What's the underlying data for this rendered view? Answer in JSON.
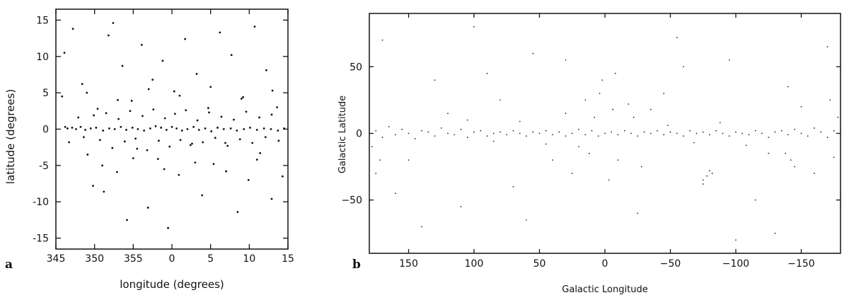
{
  "chart_data": [
    {
      "id": "a",
      "type": "scatter",
      "panel_label": "a",
      "xlabel": "longitude (degrees)",
      "ylabel": "latitude (degrees)",
      "xlim": [
        345,
        15
      ],
      "ylim": [
        -16.5,
        16.5
      ],
      "x_ticks": [
        345,
        350,
        355,
        0,
        5,
        10,
        15
      ],
      "x_tick_labels": [
        "345",
        "350",
        "355",
        "0",
        "5",
        "10",
        "15"
      ],
      "y_ticks": [
        -15,
        -10,
        -5,
        0,
        5,
        10,
        15
      ],
      "y_tick_labels": [
        "-15",
        "-10",
        "-5",
        "0",
        "5",
        "10",
        "15"
      ],
      "grid": false,
      "points": [
        [
          -13.8,
          0.3
        ],
        [
          -13.5,
          0.1
        ],
        [
          -12.9,
          0.2
        ],
        [
          -12.4,
          0.0
        ],
        [
          -11.8,
          0.3
        ],
        [
          -11.2,
          -0.1
        ],
        [
          -10.5,
          0.1
        ],
        [
          -9.8,
          0.2
        ],
        [
          -8.9,
          -0.2
        ],
        [
          -8.1,
          0.1
        ],
        [
          -7.4,
          0.0
        ],
        [
          -6.6,
          0.3
        ],
        [
          -5.9,
          -0.1
        ],
        [
          -5.1,
          0.2
        ],
        [
          -4.4,
          0.0
        ],
        [
          -3.6,
          -0.2
        ],
        [
          -2.8,
          0.1
        ],
        [
          -2.1,
          0.4
        ],
        [
          -1.4,
          0.2
        ],
        [
          -0.7,
          -0.1
        ],
        [
          0.0,
          0.3
        ],
        [
          0.6,
          0.1
        ],
        [
          1.3,
          -0.2
        ],
        [
          2.0,
          0.0
        ],
        [
          2.8,
          0.3
        ],
        [
          3.5,
          -0.1
        ],
        [
          4.3,
          0.1
        ],
        [
          5.1,
          -0.3
        ],
        [
          5.9,
          0.2
        ],
        [
          6.7,
          0.0
        ],
        [
          7.6,
          0.1
        ],
        [
          8.4,
          -0.2
        ],
        [
          9.3,
          0.0
        ],
        [
          10.1,
          0.2
        ],
        [
          11.0,
          -0.1
        ],
        [
          11.9,
          0.1
        ],
        [
          12.8,
          0.0
        ],
        [
          13.7,
          -0.2
        ],
        [
          14.5,
          0.1
        ],
        [
          -14.2,
          4.5
        ],
        [
          -13.9,
          10.5
        ],
        [
          -12.8,
          13.8
        ],
        [
          -11.6,
          6.2
        ],
        [
          -10.9,
          -3.5
        ],
        [
          -10.2,
          -7.8
        ],
        [
          -9.6,
          2.8
        ],
        [
          -8.8,
          -8.6
        ],
        [
          -8.2,
          12.9
        ],
        [
          -7.6,
          14.6
        ],
        [
          -7.1,
          -5.9
        ],
        [
          -6.4,
          8.7
        ],
        [
          -5.8,
          -12.5
        ],
        [
          -5.2,
          3.9
        ],
        [
          -4.5,
          -2.7
        ],
        [
          -3.9,
          11.6
        ],
        [
          -3.1,
          -10.8
        ],
        [
          -2.5,
          6.8
        ],
        [
          -1.8,
          -4.1
        ],
        [
          -1.2,
          9.4
        ],
        [
          -0.5,
          -13.6
        ],
        [
          0.3,
          5.2
        ],
        [
          0.9,
          -6.3
        ],
        [
          1.7,
          12.4
        ],
        [
          2.4,
          -2.2
        ],
        [
          3.2,
          7.6
        ],
        [
          3.9,
          -9.1
        ],
        [
          4.7,
          2.9
        ],
        [
          5.4,
          -4.8
        ],
        [
          6.2,
          13.3
        ],
        [
          6.9,
          -1.9
        ],
        [
          7.7,
          10.2
        ],
        [
          8.5,
          -11.4
        ],
        [
          9.2,
          4.4
        ],
        [
          9.9,
          -7.0
        ],
        [
          10.7,
          14.1
        ],
        [
          11.4,
          -3.3
        ],
        [
          12.2,
          8.1
        ],
        [
          12.9,
          -9.6
        ],
        [
          13.6,
          3.0
        ],
        [
          14.3,
          -6.5
        ],
        [
          -13.3,
          -1.8
        ],
        [
          -12.1,
          1.6
        ],
        [
          -11.4,
          -1.1
        ],
        [
          -10.1,
          1.9
        ],
        [
          -9.3,
          -1.5
        ],
        [
          -8.5,
          2.2
        ],
        [
          -7.7,
          -2.6
        ],
        [
          -6.9,
          1.4
        ],
        [
          -6.1,
          -1.7
        ],
        [
          -5.4,
          2.5
        ],
        [
          -4.7,
          -1.3
        ],
        [
          -3.8,
          1.8
        ],
        [
          -3.2,
          -2.9
        ],
        [
          -2.4,
          2.7
        ],
        [
          -1.7,
          -1.6
        ],
        [
          -0.9,
          1.5
        ],
        [
          -0.3,
          -2.4
        ],
        [
          0.4,
          2.1
        ],
        [
          1.1,
          -1.5
        ],
        [
          1.8,
          2.6
        ],
        [
          2.6,
          -2.0
        ],
        [
          3.3,
          1.2
        ],
        [
          4.0,
          -1.8
        ],
        [
          4.8,
          2.3
        ],
        [
          5.6,
          -1.2
        ],
        [
          6.4,
          1.7
        ],
        [
          7.2,
          -2.3
        ],
        [
          8.0,
          1.3
        ],
        [
          8.8,
          -1.4
        ],
        [
          9.6,
          2.4
        ],
        [
          10.4,
          -1.9
        ],
        [
          11.3,
          1.6
        ],
        [
          12.1,
          -1.1
        ],
        [
          12.9,
          2.0
        ],
        [
          13.8,
          -1.6
        ],
        [
          -11.0,
          5.0
        ],
        [
          -9.0,
          -5.0
        ],
        [
          -7.0,
          4.0
        ],
        [
          -5.0,
          -4.0
        ],
        [
          -3.0,
          5.5
        ],
        [
          -1.0,
          -5.5
        ],
        [
          1.0,
          4.6
        ],
        [
          3.0,
          -4.6
        ],
        [
          5.0,
          5.8
        ],
        [
          7.0,
          -5.8
        ],
        [
          9.0,
          4.2
        ],
        [
          11.0,
          -4.2
        ],
        [
          13.0,
          5.3
        ]
      ]
    },
    {
      "id": "b",
      "type": "scatter",
      "panel_label": "b",
      "xlabel": "Galactic Longitude",
      "ylabel": "Galactic Latitude",
      "xlim": [
        180,
        -180
      ],
      "ylim": [
        -90,
        90
      ],
      "x_ticks": [
        150,
        100,
        50,
        0,
        -50,
        -100,
        -150
      ],
      "x_tick_labels": [
        "150",
        "100",
        "50",
        "0",
        "−50",
        "−100",
        "−150"
      ],
      "y_ticks": [
        -50,
        0,
        50
      ],
      "y_tick_labels": [
        "−50",
        "0",
        "50"
      ],
      "grid": false,
      "points": [
        [
          175,
          2
        ],
        [
          170,
          -3
        ],
        [
          165,
          5
        ],
        [
          160,
          -1
        ],
        [
          155,
          3
        ],
        [
          150,
          0
        ],
        [
          145,
          -4
        ],
        [
          140,
          2
        ],
        [
          135,
          1
        ],
        [
          130,
          -2
        ],
        [
          125,
          4
        ],
        [
          120,
          0
        ],
        [
          115,
          -1
        ],
        [
          110,
          3
        ],
        [
          105,
          -3
        ],
        [
          100,
          1
        ],
        [
          95,
          2
        ],
        [
          90,
          -2
        ],
        [
          85,
          0
        ],
        [
          80,
          1
        ],
        [
          75,
          -1
        ],
        [
          70,
          2
        ],
        [
          65,
          0
        ],
        [
          60,
          -2
        ],
        [
          55,
          1
        ],
        [
          50,
          0
        ],
        [
          45,
          2
        ],
        [
          40,
          -1
        ],
        [
          35,
          1
        ],
        [
          30,
          -2
        ],
        [
          25,
          0
        ],
        [
          20,
          3
        ],
        [
          15,
          -1
        ],
        [
          10,
          2
        ],
        [
          5,
          -2
        ],
        [
          0,
          0
        ],
        [
          -5,
          1
        ],
        [
          -10,
          -1
        ],
        [
          -15,
          2
        ],
        [
          -20,
          0
        ],
        [
          -25,
          -2
        ],
        [
          -30,
          1
        ],
        [
          -35,
          0
        ],
        [
          -40,
          2
        ],
        [
          -45,
          -1
        ],
        [
          -50,
          1
        ],
        [
          -55,
          0
        ],
        [
          -60,
          -2
        ],
        [
          -65,
          2
        ],
        [
          -70,
          0
        ],
        [
          -75,
          1
        ],
        [
          -80,
          -1
        ],
        [
          -85,
          2
        ],
        [
          -90,
          0
        ],
        [
          -95,
          -2
        ],
        [
          -100,
          1
        ],
        [
          -105,
          0
        ],
        [
          -110,
          -1
        ],
        [
          -115,
          2
        ],
        [
          -120,
          0
        ],
        [
          -125,
          -3
        ],
        [
          -130,
          1
        ],
        [
          -135,
          2
        ],
        [
          -140,
          -1
        ],
        [
          -145,
          3
        ],
        [
          -150,
          0
        ],
        [
          -155,
          -2
        ],
        [
          -160,
          4
        ],
        [
          -165,
          1
        ],
        [
          -170,
          -3
        ],
        [
          -175,
          2
        ],
        [
          8,
          12
        ],
        [
          -6,
          18
        ],
        [
          12,
          -15
        ],
        [
          -10,
          -20
        ],
        [
          4,
          30
        ],
        [
          -3,
          -35
        ],
        [
          15,
          25
        ],
        [
          -18,
          22
        ],
        [
          20,
          -10
        ],
        [
          -22,
          12
        ],
        [
          2,
          40
        ],
        [
          -8,
          45
        ],
        [
          25,
          -30
        ],
        [
          -28,
          -25
        ],
        [
          30,
          15
        ],
        [
          -35,
          18
        ],
        [
          40,
          -20
        ],
        [
          -45,
          30
        ],
        [
          55,
          60
        ],
        [
          -60,
          50
        ],
        [
          70,
          -40
        ],
        [
          -75,
          -35
        ],
        [
          90,
          45
        ],
        [
          -95,
          55
        ],
        [
          110,
          -55
        ],
        [
          -115,
          -50
        ],
        [
          130,
          40
        ],
        [
          -140,
          35
        ],
        [
          160,
          -45
        ],
        [
          -160,
          -30
        ],
        [
          170,
          70
        ],
        [
          -170,
          65
        ],
        [
          140,
          -70
        ],
        [
          -130,
          -75
        ],
        [
          100,
          80
        ],
        [
          -100,
          -80
        ],
        [
          60,
          -65
        ],
        [
          -55,
          72
        ],
        [
          30,
          55
        ],
        [
          -25,
          -60
        ],
        [
          80,
          25
        ],
        [
          -82,
          -30
        ],
        [
          120,
          15
        ],
        [
          -125,
          -15
        ],
        [
          150,
          -20
        ],
        [
          -150,
          20
        ],
        [
          45,
          -8
        ],
        [
          -48,
          6
        ],
        [
          65,
          9
        ],
        [
          -68,
          -7
        ],
        [
          85,
          -6
        ],
        [
          -88,
          8
        ],
        [
          105,
          10
        ],
        [
          -108,
          -9
        ],
        [
          -142,
          -20
        ],
        [
          -138,
          -15
        ],
        [
          -145,
          -25
        ],
        [
          -78,
          -32
        ],
        [
          -75,
          -38
        ],
        [
          -80,
          -28
        ],
        [
          175,
          -30
        ],
        [
          172,
          -20
        ],
        [
          178,
          -10
        ],
        [
          -178,
          12
        ],
        [
          -175,
          -18
        ],
        [
          -172,
          25
        ]
      ]
    }
  ]
}
